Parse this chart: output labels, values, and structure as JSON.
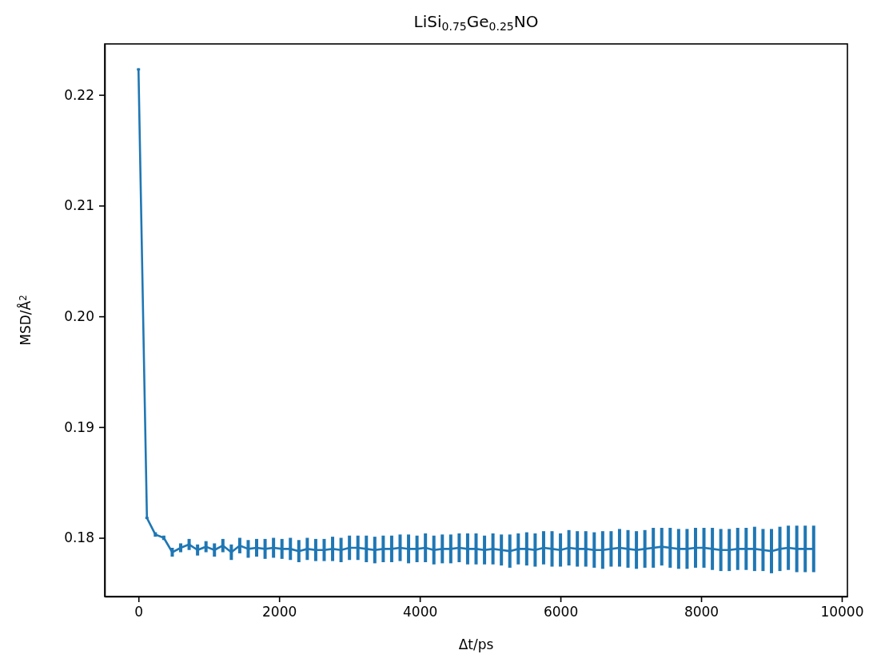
{
  "chart_data": {
    "type": "line",
    "title": "LiSi$_{0.75}$Ge$_{0.25}$NO",
    "xlabel": "Δt/ps",
    "ylabel": "MSD/Å$^{2}$",
    "x": [
      0,
      120,
      240,
      360,
      480,
      600,
      720,
      840,
      960,
      1080,
      1200,
      1320,
      1440,
      1560,
      1680,
      1800,
      1920,
      2040,
      2160,
      2280,
      2400,
      2520,
      2640,
      2760,
      2880,
      3000,
      3120,
      3240,
      3360,
      3480,
      3600,
      3720,
      3840,
      3960,
      4080,
      4200,
      4320,
      4440,
      4560,
      4680,
      4800,
      4920,
      5040,
      5160,
      5280,
      5400,
      5520,
      5640,
      5760,
      5880,
      6000,
      6120,
      6240,
      6360,
      6480,
      6600,
      6720,
      6840,
      6960,
      7080,
      7200,
      7320,
      7440,
      7560,
      7680,
      7800,
      7920,
      8040,
      8160,
      8280,
      8400,
      8520,
      8640,
      8760,
      8880,
      9000,
      9120,
      9240,
      9360,
      9480,
      9600
    ],
    "series": [
      {
        "color": "#1f77b4",
        "values": [
          0.2223,
          0.1818,
          0.1803,
          0.18,
          0.1787,
          0.1791,
          0.1794,
          0.1789,
          0.1792,
          0.1789,
          0.1793,
          0.1787,
          0.1793,
          0.179,
          0.1791,
          0.179,
          0.1791,
          0.179,
          0.179,
          0.1788,
          0.179,
          0.1789,
          0.1789,
          0.179,
          0.1789,
          0.1791,
          0.1791,
          0.179,
          0.1789,
          0.179,
          0.179,
          0.1791,
          0.179,
          0.179,
          0.1791,
          0.1789,
          0.179,
          0.179,
          0.1791,
          0.179,
          0.179,
          0.1789,
          0.179,
          0.1789,
          0.1788,
          0.179,
          0.179,
          0.1789,
          0.1791,
          0.179,
          0.1789,
          0.1791,
          0.179,
          0.179,
          0.1789,
          0.1789,
          0.179,
          0.1791,
          0.179,
          0.1789,
          0.179,
          0.1791,
          0.1792,
          0.1791,
          0.179,
          0.179,
          0.1791,
          0.1791,
          0.179,
          0.1789,
          0.1789,
          0.179,
          0.179,
          0.179,
          0.1789,
          0.1788,
          0.179,
          0.1791,
          0.179,
          0.179,
          0.179
        ],
        "errors": [
          0.0001,
          0.0001,
          0.0002,
          0.0002,
          0.0004,
          0.0004,
          0.0005,
          0.0005,
          0.0005,
          0.0006,
          0.0006,
          0.0007,
          0.0007,
          0.0008,
          0.0008,
          0.0009,
          0.0009,
          0.0009,
          0.001,
          0.001,
          0.001,
          0.001,
          0.001,
          0.0011,
          0.0011,
          0.0011,
          0.0011,
          0.0012,
          0.0012,
          0.0012,
          0.0012,
          0.0012,
          0.0013,
          0.0012,
          0.0013,
          0.0013,
          0.0013,
          0.0013,
          0.0013,
          0.0014,
          0.0014,
          0.0013,
          0.0014,
          0.0014,
          0.0015,
          0.0014,
          0.0015,
          0.0015,
          0.0015,
          0.0016,
          0.0015,
          0.0016,
          0.0016,
          0.0016,
          0.0016,
          0.0017,
          0.0016,
          0.0017,
          0.0017,
          0.0017,
          0.0017,
          0.0018,
          0.0017,
          0.0018,
          0.0018,
          0.0018,
          0.0018,
          0.0018,
          0.0019,
          0.0019,
          0.0019,
          0.0019,
          0.0019,
          0.002,
          0.0019,
          0.002,
          0.002,
          0.002,
          0.0021,
          0.0021,
          0.0021
        ]
      }
    ],
    "xlim": [
      -480,
      10080
    ],
    "xticks": [
      0,
      2000,
      4000,
      6000,
      8000,
      10000
    ],
    "ylim": [
      0.1747,
      0.2246
    ],
    "yticks": [
      {
        "value": 0.18,
        "label": "0.18"
      },
      {
        "value": 0.19,
        "label": "0.19"
      },
      {
        "value": 0.2,
        "label": "0.20"
      },
      {
        "value": 0.21,
        "label": "0.21"
      },
      {
        "value": 0.22,
        "label": "0.22"
      }
    ],
    "grid": false,
    "marker": "none",
    "line_style": "solid"
  }
}
